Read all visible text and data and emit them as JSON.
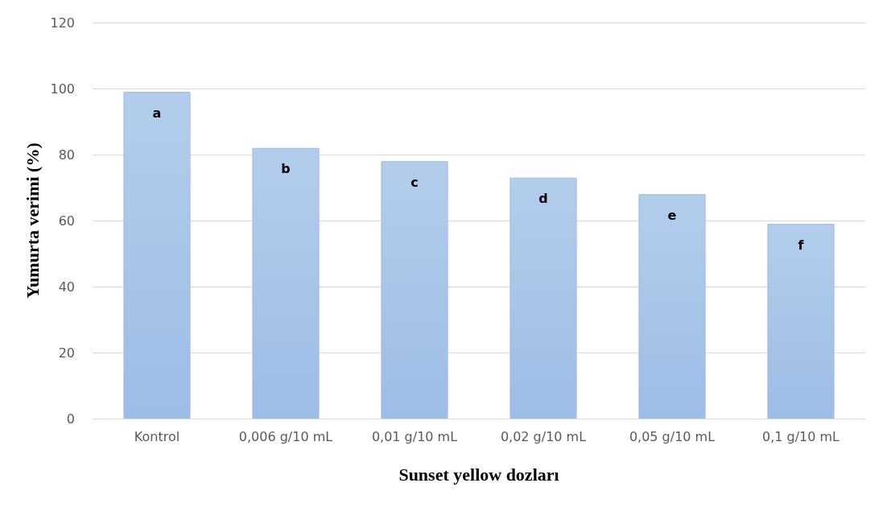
{
  "chart_data": {
    "type": "bar",
    "xlabel": "Sunset yellow dozları",
    "ylabel": "Yumurta verimi (%)",
    "categories": [
      "Kontrol",
      "0,006 g/10 mL",
      "0,01 g/10 mL",
      "0,02 g/10 mL",
      "0,05 g/10 mL",
      "0,1 g/10 mL"
    ],
    "values": [
      99,
      82,
      78,
      73,
      68,
      59
    ],
    "value_labels": [
      "a",
      "b",
      "c",
      "d",
      "e",
      "f"
    ],
    "color": "#9dbde6",
    "ylim": [
      0,
      120
    ],
    "yticks": [
      0,
      20,
      40,
      60,
      80,
      100,
      120
    ],
    "grid": "y"
  }
}
